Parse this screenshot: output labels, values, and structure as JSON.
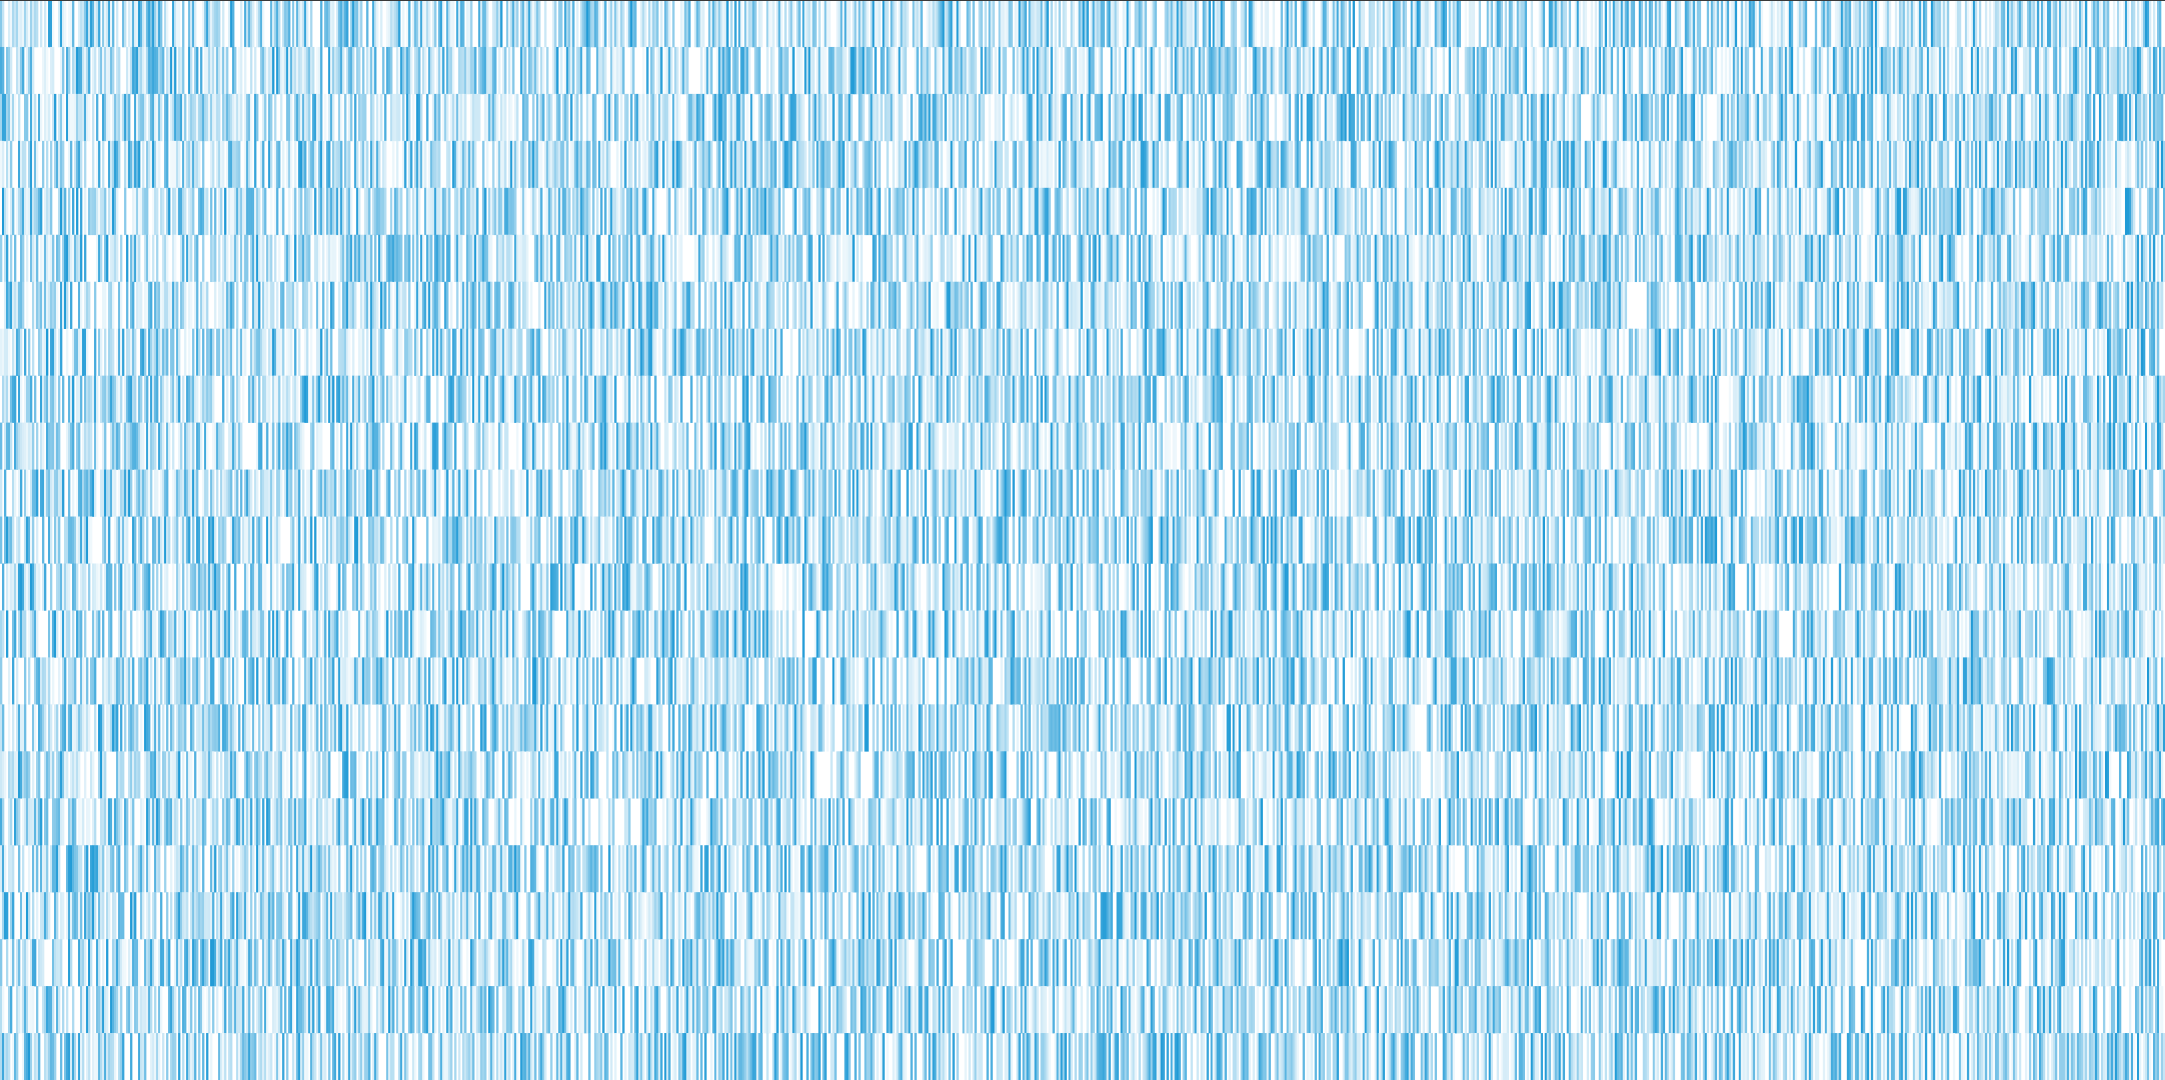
{
  "chart_data": {
    "type": "heatmap",
    "rows": 23,
    "columns": 1082,
    "value_range": [
      0,
      1
    ],
    "colors": {
      "low": "#ffffff",
      "high": "#1f9ad6",
      "border": "#3a3a3a"
    },
    "grid": false,
    "legend": "none",
    "title": "",
    "xlabel": "",
    "ylabel": ""
  }
}
